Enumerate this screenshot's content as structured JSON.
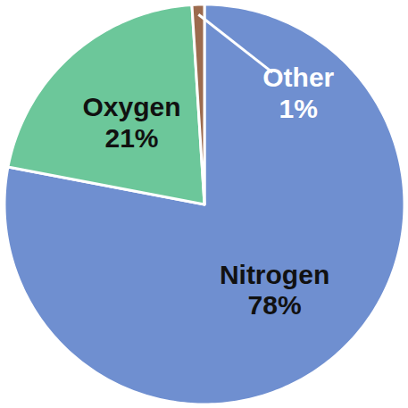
{
  "chart_data": {
    "type": "pie",
    "categories": [
      "Nitrogen",
      "Oxygen",
      "Other"
    ],
    "values": [
      78,
      21,
      1
    ],
    "value_labels": [
      "78%",
      "21%",
      "1%"
    ],
    "colors": [
      "#6f8fd0",
      "#6cc79a",
      "#9c6b4e"
    ],
    "data_labels": true
  }
}
